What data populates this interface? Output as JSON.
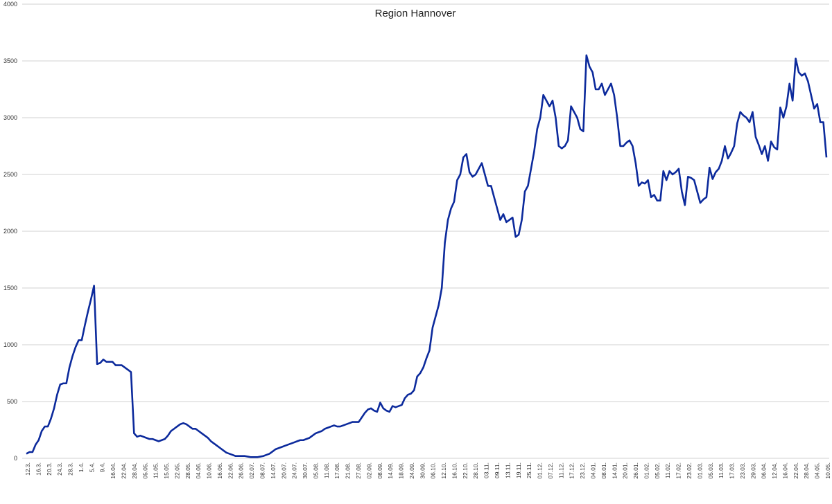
{
  "chart_data": {
    "type": "line",
    "title": "Region Hannover",
    "xlabel": "",
    "ylabel": "",
    "ylim": [
      0,
      4000
    ],
    "yticks": [
      0,
      500,
      1000,
      1500,
      2000,
      2500,
      3000,
      3500,
      4000
    ],
    "grid": true,
    "legend": "none",
    "colors": {
      "line": "#0c2a9c",
      "grid": "#d0d0d0"
    },
    "xtick_labels": [
      "12.3.",
      "16.3.",
      "20.3.",
      "24.3.",
      "28.3.",
      "1.4.",
      "5.4.",
      "9.4.",
      "16.04.",
      "22.04.",
      "28.04.",
      "05.05.",
      "11.05.",
      "15.05.",
      "22.05.",
      "28.05.",
      "04.06.",
      "10.06.",
      "16.06.",
      "22.06.",
      "26.06.",
      "02.07.",
      "08.07.",
      "14.07.",
      "20.07.",
      "24.07.",
      "30.07.",
      "05.08.",
      "11.08.",
      "17.08.",
      "21.08.",
      "27.08.",
      "02.09.",
      "08.09.",
      "14.09.",
      "18.09.",
      "24.09.",
      "30.09.",
      "06.10.",
      "12.10.",
      "16.10.",
      "22.10.",
      "28.10.",
      "03.11.",
      "09.11.",
      "13.11.",
      "19.11.",
      "25.11.",
      "01.12.",
      "07.12.",
      "11.12.",
      "17.12.",
      "23.12.",
      "04.01.",
      "08.01.",
      "14.01.",
      "20.01.",
      "26.01.",
      "01.02.",
      "05.02.",
      "11.02.",
      "17.02.",
      "23.02.",
      "01.03.",
      "05.03.",
      "11.03.",
      "17.03.",
      "23.03.",
      "29.03.",
      "06.04.",
      "12.04.",
      "16.04.",
      "22.04.",
      "28.04.",
      "04.05.",
      "10.05."
    ],
    "series": [
      {
        "values": [
          40,
          55,
          55,
          120,
          160,
          240,
          280,
          280,
          350,
          440,
          560,
          650,
          660,
          660,
          800,
          900,
          980,
          1040,
          1040,
          1170,
          1290,
          1400,
          1520,
          830,
          840,
          870,
          850,
          850,
          850,
          820,
          820,
          820,
          800,
          780,
          760,
          220,
          190,
          200,
          190,
          180,
          170,
          170,
          160,
          150,
          160,
          170,
          200,
          240,
          260,
          280,
          300,
          310,
          300,
          280,
          260,
          260,
          240,
          220,
          200,
          180,
          150,
          130,
          110,
          90,
          70,
          50,
          40,
          30,
          20,
          20,
          20,
          20,
          15,
          10,
          10,
          10,
          15,
          20,
          30,
          40,
          60,
          80,
          90,
          100,
          110,
          120,
          130,
          140,
          150,
          160,
          160,
          170,
          180,
          200,
          220,
          230,
          240,
          260,
          270,
          280,
          290,
          280,
          280,
          290,
          300,
          310,
          320,
          320,
          320,
          360,
          400,
          430,
          440,
          420,
          410,
          490,
          440,
          420,
          410,
          460,
          450,
          460,
          470,
          530,
          560,
          570,
          600,
          720,
          750,
          800,
          880,
          950,
          1150,
          1250,
          1350,
          1500,
          1900,
          2100,
          2200,
          2260,
          2450,
          2500,
          2650,
          2680,
          2520,
          2480,
          2500,
          2550,
          2600,
          2500,
          2400,
          2400,
          2300,
          2200,
          2100,
          2150,
          2080,
          2100,
          2120,
          1950,
          1970,
          2100,
          2350,
          2400,
          2550,
          2700,
          2900,
          3000,
          3200,
          3150,
          3100,
          3150,
          3000,
          2750,
          2730,
          2750,
          2800,
          3100,
          3050,
          3000,
          2900,
          2880,
          3550,
          3450,
          3400,
          3250,
          3250,
          3300,
          3200,
          3250,
          3300,
          3200,
          3000,
          2750,
          2750,
          2780,
          2800,
          2750,
          2600,
          2400,
          2430,
          2420,
          2450,
          2300,
          2320,
          2270,
          2270,
          2530,
          2450,
          2530,
          2500,
          2520,
          2550,
          2350,
          2230,
          2480,
          2470,
          2450,
          2350,
          2250,
          2280,
          2300,
          2560,
          2460,
          2520,
          2550,
          2620,
          2750,
          2640,
          2690,
          2750,
          2950,
          3050,
          3020,
          3000,
          2960,
          3050,
          2830,
          2760,
          2680,
          2750,
          2620,
          2790,
          2740,
          2720,
          3090,
          3000,
          3100,
          3300,
          3150,
          3520,
          3400,
          3370,
          3390,
          3320,
          3200,
          3080,
          3120,
          2960,
          2960,
          2650
        ]
      }
    ]
  }
}
